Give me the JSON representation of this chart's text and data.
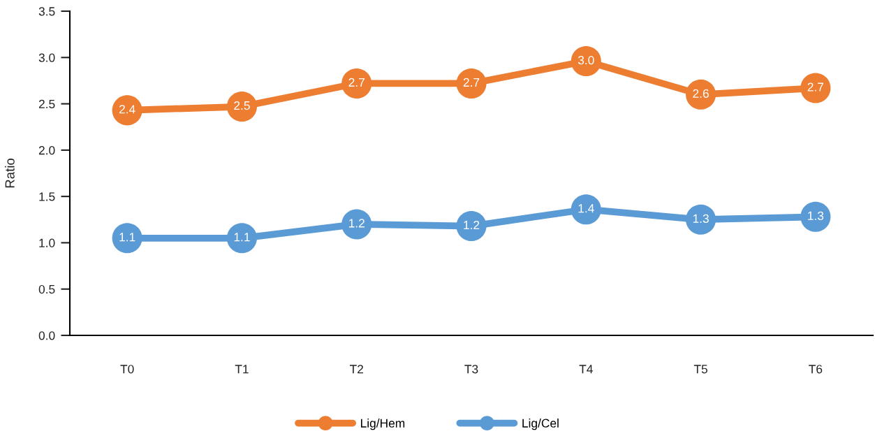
{
  "chart_data": {
    "type": "line",
    "ylabel": "Ratio",
    "categories": [
      "T0",
      "T1",
      "T2",
      "T3",
      "T4",
      "T5",
      "T6"
    ],
    "series": [
      {
        "name": "Lig/Hem",
        "color": "#ed7d31",
        "values": [
          2.43,
          2.47,
          2.72,
          2.72,
          2.96,
          2.6,
          2.67
        ],
        "value_labels": [
          "2.4",
          "2.5",
          "2.7",
          "2.7",
          "3.0",
          "2.6",
          "2.7"
        ]
      },
      {
        "name": "Lig/Cel",
        "color": "#5b9bd5",
        "values": [
          1.05,
          1.05,
          1.2,
          1.18,
          1.36,
          1.25,
          1.28
        ],
        "value_labels": [
          "1.1",
          "1.1",
          "1.2",
          "1.2",
          "1.4",
          "1.3",
          "1.3"
        ]
      }
    ],
    "ylim": [
      0,
      3.5
    ],
    "yticks": [
      {
        "value": 0,
        "label": "0.0"
      },
      0.5,
      {
        "value": 1,
        "label": "1.0"
      },
      1.5,
      {
        "value": 2,
        "label": "2.0"
      },
      2.5,
      {
        "value": 3,
        "label": "3.0"
      },
      3.5
    ],
    "legend": "bottom",
    "marker": "circle",
    "line_style": "solid"
  }
}
